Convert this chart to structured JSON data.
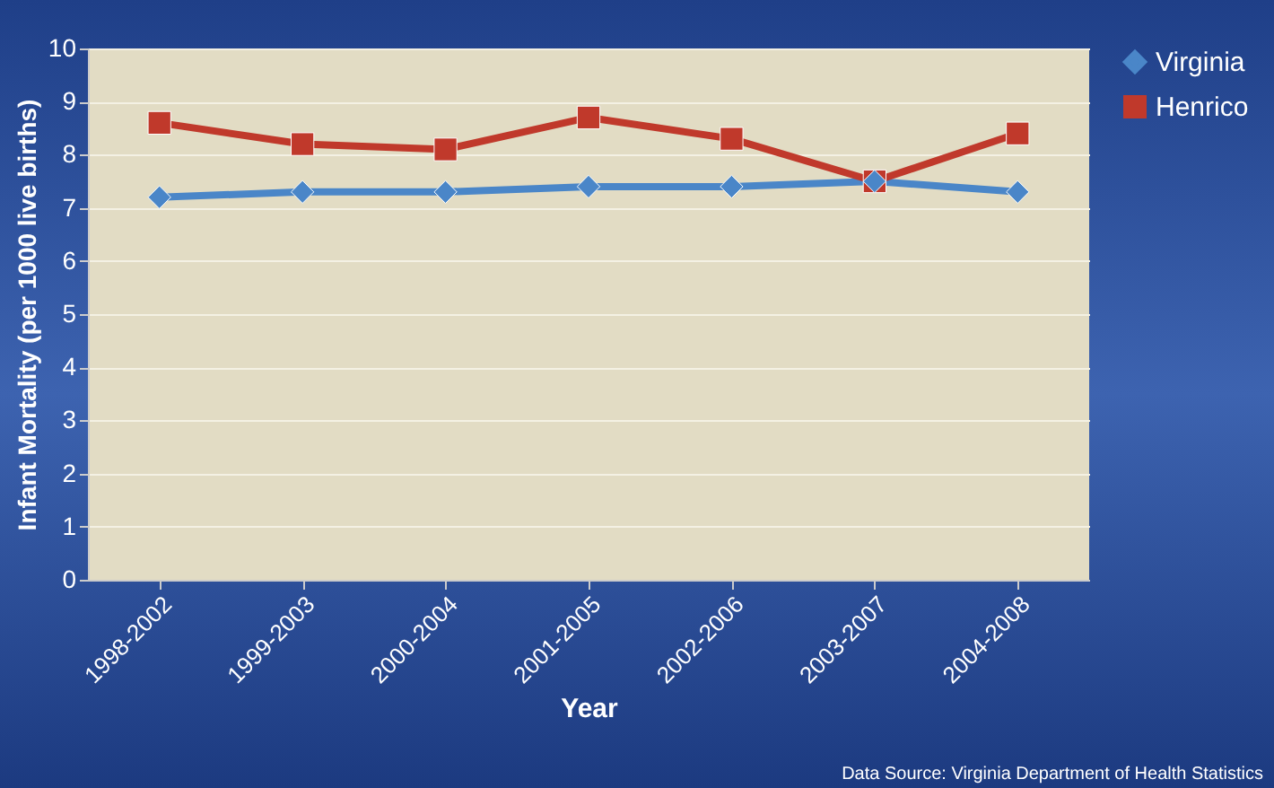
{
  "chart_data": {
    "type": "line",
    "xlabel": "Year",
    "ylabel": "Infant Mortality (per 1000 live births)",
    "categories": [
      "1998-2002",
      "1999-2003",
      "2000-2004",
      "2001-2005",
      "2002-2006",
      "2003-2007",
      "2004-2008"
    ],
    "series": [
      {
        "name": "Virginia",
        "color": "#4a86c8",
        "marker": "diamond",
        "values": [
          7.2,
          7.3,
          7.3,
          7.4,
          7.4,
          7.5,
          7.3
        ]
      },
      {
        "name": "Henrico",
        "color": "#c0392b",
        "marker": "square",
        "values": [
          8.6,
          8.2,
          8.1,
          8.7,
          8.3,
          7.5,
          8.4
        ]
      }
    ],
    "ylim": [
      0,
      10
    ],
    "yticks": [
      0,
      1,
      2,
      3,
      4,
      5,
      6,
      7,
      8,
      9,
      10
    ],
    "grid": "y",
    "legend": "right",
    "annotations": [
      "Data Source: Virginia Department of Health Statistics"
    ]
  }
}
